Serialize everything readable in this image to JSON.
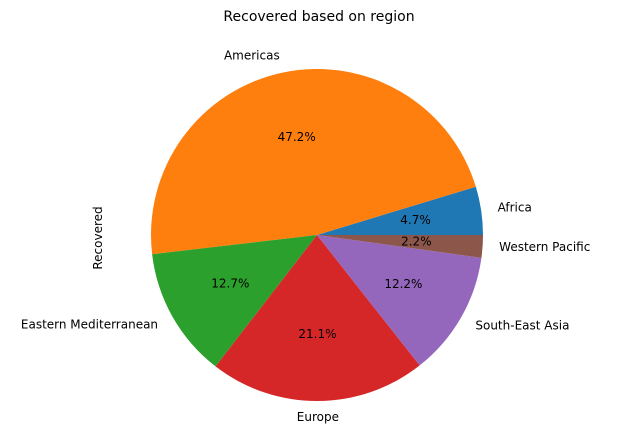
{
  "chart_data": {
    "type": "pie",
    "title": "Recovered based on region",
    "ylabel": "Recovered",
    "start_angle_deg": 0,
    "direction": "counterclockwise",
    "slices": [
      {
        "label": "Africa",
        "value": 4.7,
        "pct_label": "4.7%",
        "color": "#1f77b4"
      },
      {
        "label": "Americas",
        "value": 47.2,
        "pct_label": "47.2%",
        "color": "#ff7f0e"
      },
      {
        "label": "Eastern Mediterranean",
        "value": 12.7,
        "pct_label": "12.7%",
        "color": "#2ca02c"
      },
      {
        "label": "Europe",
        "value": 21.1,
        "pct_label": "21.1%",
        "color": "#d62728"
      },
      {
        "label": "South-East Asia",
        "value": 12.2,
        "pct_label": "12.2%",
        "color": "#9467bd"
      },
      {
        "label": "Western Pacific",
        "value": 2.2,
        "pct_label": "2.2%",
        "color": "#8c564b"
      }
    ]
  }
}
